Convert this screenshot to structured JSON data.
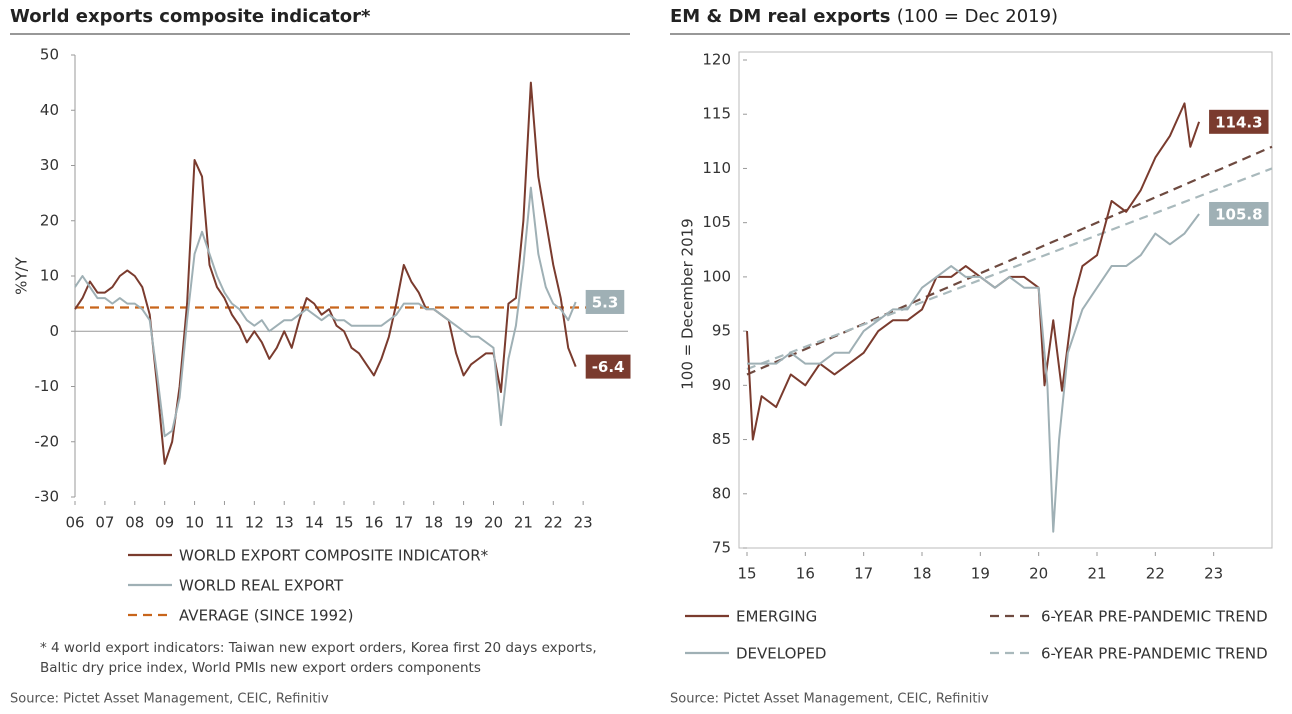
{
  "chart_data": [
    {
      "type": "line",
      "title": "World exports composite indicator*",
      "ylabel": "%Y/Y",
      "xlim": [
        2006,
        2024.5
      ],
      "ylim": [
        -30,
        50
      ],
      "xticks": [
        {
          "value": 2006,
          "label": "06"
        },
        {
          "value": 2007,
          "label": "07"
        },
        {
          "value": 2008,
          "label": "08"
        },
        {
          "value": 2009,
          "label": "09"
        },
        {
          "value": 2010,
          "label": "10"
        },
        {
          "value": 2011,
          "label": "11"
        },
        {
          "value": 2012,
          "label": "12"
        },
        {
          "value": 2013,
          "label": "13"
        },
        {
          "value": 2014,
          "label": "14"
        },
        {
          "value": 2015,
          "label": "15"
        },
        {
          "value": 2016,
          "label": "16"
        },
        {
          "value": 2017,
          "label": "17"
        },
        {
          "value": 2018,
          "label": "18"
        },
        {
          "value": 2019,
          "label": "19"
        },
        {
          "value": 2020,
          "label": "20"
        },
        {
          "value": 2021,
          "label": "21"
        },
        {
          "value": 2022,
          "label": "22"
        },
        {
          "value": 2023,
          "label": "23"
        }
      ],
      "yticks": [
        -30,
        -20,
        -10,
        0,
        10,
        20,
        30,
        40,
        50
      ],
      "zero_line": true,
      "frame": false,
      "legend_columns": 1,
      "series": [
        {
          "name": "WORLD EXPORT COMPOSITE INDICATOR*",
          "color": "#7a3b2e",
          "label_last": true,
          "x": [
            2006,
            2006.25,
            2006.5,
            2006.75,
            2007,
            2007.25,
            2007.5,
            2007.75,
            2008,
            2008.25,
            2008.5,
            2008.75,
            2009,
            2009.25,
            2009.5,
            2009.75,
            2010,
            2010.25,
            2010.5,
            2010.75,
            2011,
            2011.25,
            2011.5,
            2011.75,
            2012,
            2012.25,
            2012.5,
            2012.75,
            2013,
            2013.25,
            2013.5,
            2013.75,
            2014,
            2014.25,
            2014.5,
            2014.75,
            2015,
            2015.25,
            2015.5,
            2015.75,
            2016,
            2016.25,
            2016.5,
            2016.75,
            2017,
            2017.25,
            2017.5,
            2017.75,
            2018,
            2018.25,
            2018.5,
            2018.75,
            2019,
            2019.25,
            2019.5,
            2019.75,
            2020,
            2020.25,
            2020.5,
            2020.75,
            2021,
            2021.25,
            2021.5,
            2021.75,
            2022,
            2022.25,
            2022.5,
            2022.75
          ],
          "values": [
            4,
            6,
            9,
            7,
            7,
            8,
            10,
            11,
            10,
            8,
            3,
            -10,
            -24,
            -20,
            -10,
            5,
            31,
            28,
            12,
            8,
            6,
            3,
            1,
            -2,
            0,
            -2,
            -5,
            -3,
            0,
            -3,
            2,
            6,
            5,
            3,
            4,
            1,
            0,
            -3,
            -4,
            -6,
            -8,
            -5,
            -1,
            5,
            12,
            9,
            7,
            4,
            4,
            3,
            2,
            -4,
            -8,
            -6,
            -5,
            -4,
            -4,
            -11,
            5,
            6,
            20,
            45,
            28,
            20,
            12,
            6,
            -3,
            -6.4
          ]
        },
        {
          "name": "WORLD REAL EXPORT",
          "color": "#9fb0b5",
          "label_last": true,
          "x": [
            2006,
            2006.25,
            2006.5,
            2006.75,
            2007,
            2007.25,
            2007.5,
            2007.75,
            2008,
            2008.25,
            2008.5,
            2008.75,
            2009,
            2009.25,
            2009.5,
            2009.75,
            2010,
            2010.25,
            2010.5,
            2010.75,
            2011,
            2011.25,
            2011.5,
            2011.75,
            2012,
            2012.25,
            2012.5,
            2012.75,
            2013,
            2013.25,
            2013.5,
            2013.75,
            2014,
            2014.25,
            2014.5,
            2014.75,
            2015,
            2015.25,
            2015.5,
            2015.75,
            2016,
            2016.25,
            2016.5,
            2016.75,
            2017,
            2017.25,
            2017.5,
            2017.75,
            2018,
            2018.25,
            2018.5,
            2018.75,
            2019,
            2019.25,
            2019.5,
            2019.75,
            2020,
            2020.25,
            2020.5,
            2020.75,
            2021,
            2021.25,
            2021.5,
            2021.75,
            2022,
            2022.25,
            2022.5,
            2022.75
          ],
          "values": [
            8,
            10,
            8,
            6,
            6,
            5,
            6,
            5,
            5,
            4,
            2,
            -8,
            -19,
            -18,
            -12,
            2,
            14,
            18,
            14,
            10,
            7,
            5,
            4,
            2,
            1,
            2,
            0,
            1,
            2,
            2,
            3,
            4,
            3,
            2,
            3,
            2,
            2,
            1,
            1,
            1,
            1,
            1,
            2,
            3,
            5,
            5,
            5,
            4,
            4,
            3,
            2,
            1,
            0,
            -1,
            -1,
            -2,
            -3,
            -17,
            -5,
            1,
            12,
            26,
            14,
            8,
            5,
            4,
            2,
            5.3
          ]
        },
        {
          "name": "AVERAGE (SINCE 1992)",
          "color": "#c8651b",
          "dashed": true,
          "x": [
            2006,
            2023.2
          ],
          "values": [
            4.3,
            4.3
          ]
        }
      ],
      "note": [
        "* 4 world export indicators: Taiwan new export orders, Korea first 20 days exports,",
        "Baltic dry price index, World PMIs new export orders components"
      ],
      "source": "Source: Pictet Asset Management, CEIC, Refinitiv"
    },
    {
      "type": "line",
      "title": "EM & DM real exports",
      "subtitle": "(100 = Dec 2019)",
      "ylabel": "100 = December 2019",
      "xlim": [
        2015,
        2024
      ],
      "ylim": [
        75,
        120
      ],
      "xticks": [
        {
          "value": 2015,
          "label": "15"
        },
        {
          "value": 2016,
          "label": "16"
        },
        {
          "value": 2017,
          "label": "17"
        },
        {
          "value": 2018,
          "label": "18"
        },
        {
          "value": 2019,
          "label": "19"
        },
        {
          "value": 2020,
          "label": "20"
        },
        {
          "value": 2021,
          "label": "21"
        },
        {
          "value": 2022,
          "label": "22"
        },
        {
          "value": 2023,
          "label": "23"
        }
      ],
      "yticks": [
        75,
        80,
        85,
        90,
        95,
        100,
        105,
        110,
        115,
        120
      ],
      "zero_line": false,
      "frame": true,
      "legend_columns": 2,
      "series": [
        {
          "name": "EMERGING",
          "color": "#7a3b2e",
          "label_last": true,
          "x": [
            2015,
            2015.1,
            2015.25,
            2015.5,
            2015.75,
            2016,
            2016.25,
            2016.5,
            2016.75,
            2017,
            2017.25,
            2017.5,
            2017.75,
            2018,
            2018.25,
            2018.5,
            2018.75,
            2019,
            2019.25,
            2019.5,
            2019.75,
            2020,
            2020.1,
            2020.25,
            2020.4,
            2020.6,
            2020.75,
            2021,
            2021.25,
            2021.5,
            2021.75,
            2022,
            2022.25,
            2022.5,
            2022.6,
            2022.75
          ],
          "values": [
            95,
            85,
            89,
            88,
            91,
            90,
            92,
            91,
            92,
            93,
            95,
            96,
            96,
            97,
            100,
            100,
            101,
            100,
            99,
            100,
            100,
            99,
            90,
            96,
            89.5,
            98,
            101,
            102,
            107,
            106,
            108,
            111,
            113,
            116,
            112,
            114.3
          ]
        },
        {
          "name": "DEVELOPED",
          "color": "#9fb0b5",
          "label_last": true,
          "x": [
            2015,
            2015.25,
            2015.5,
            2015.75,
            2016,
            2016.25,
            2016.5,
            2016.75,
            2017,
            2017.25,
            2017.5,
            2017.75,
            2018,
            2018.25,
            2018.5,
            2018.75,
            2019,
            2019.25,
            2019.5,
            2019.75,
            2020,
            2020.15,
            2020.25,
            2020.35,
            2020.5,
            2020.75,
            2021,
            2021.25,
            2021.5,
            2021.75,
            2022,
            2022.25,
            2022.5,
            2022.75
          ],
          "values": [
            92,
            92,
            92,
            93,
            92,
            92,
            93,
            93,
            95,
            96,
            97,
            97,
            99,
            100,
            101,
            100,
            100,
            99,
            100,
            99,
            99,
            90,
            76.5,
            85,
            93,
            97,
            99,
            101,
            101,
            102,
            104,
            103,
            104,
            105.8
          ]
        },
        {
          "name": "6-YEAR PRE-PANDEMIC TREND",
          "color": "#6e4a40",
          "dashed": true,
          "x": [
            2015,
            2024
          ],
          "values": [
            91,
            112
          ]
        },
        {
          "name": "6-YEAR PRE-PANDEMIC TREND",
          "color": "#a9b9bc",
          "dashed": true,
          "x": [
            2015,
            2024
          ],
          "values": [
            91.5,
            110
          ]
        }
      ],
      "source": "Source: Pictet Asset Management, CEIC, Refinitiv"
    }
  ]
}
